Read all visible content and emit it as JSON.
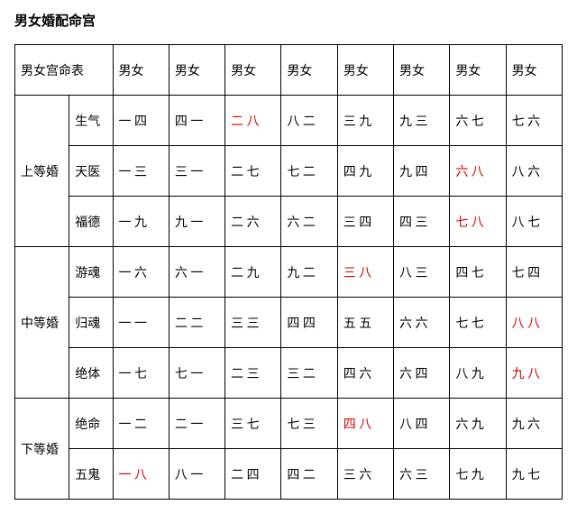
{
  "title": "男女婚配命宫",
  "header": {
    "first": "男女宫命表",
    "cols": [
      "男女",
      "男女",
      "男女",
      "男女",
      "男女",
      "男女",
      "男女",
      "男女"
    ]
  },
  "groups": [
    {
      "label": "上等婚",
      "rows": [
        {
          "sub": "生气",
          "cells": [
            {
              "t": "一 四"
            },
            {
              "t": "四 一"
            },
            {
              "t": "二 八",
              "red": true
            },
            {
              "t": "八 二"
            },
            {
              "t": "三 九"
            },
            {
              "t": "九 三"
            },
            {
              "t": "六 七"
            },
            {
              "t": "七 六"
            }
          ]
        },
        {
          "sub": "天医",
          "cells": [
            {
              "t": "一 三"
            },
            {
              "t": "三 一"
            },
            {
              "t": "二 七"
            },
            {
              "t": "七 二"
            },
            {
              "t": "四 九"
            },
            {
              "t": "九 四"
            },
            {
              "t": "六 八",
              "red": true
            },
            {
              "t": "八 六"
            }
          ]
        },
        {
          "sub": "福德",
          "cells": [
            {
              "t": "一 九"
            },
            {
              "t": "九 一"
            },
            {
              "t": "二 六"
            },
            {
              "t": "六 二"
            },
            {
              "t": "三 四"
            },
            {
              "t": "四 三"
            },
            {
              "t": "七 八",
              "red": true
            },
            {
              "t": "八 七"
            }
          ]
        }
      ]
    },
    {
      "label": "中等婚",
      "rows": [
        {
          "sub": "游魂",
          "cells": [
            {
              "t": "一 六"
            },
            {
              "t": "六 一"
            },
            {
              "t": "二 九"
            },
            {
              "t": "九 二"
            },
            {
              "t": "三 八",
              "red": true
            },
            {
              "t": "八 三"
            },
            {
              "t": "四 七"
            },
            {
              "t": "七 四"
            }
          ]
        },
        {
          "sub": "归魂",
          "cells": [
            {
              "t": "一 一"
            },
            {
              "t": "二 二"
            },
            {
              "t": "三 三"
            },
            {
              "t": "四 四"
            },
            {
              "t": "五 五"
            },
            {
              "t": "六 六"
            },
            {
              "t": "七 七"
            },
            {
              "t": "八 八",
              "red": true
            }
          ]
        },
        {
          "sub": "绝体",
          "cells": [
            {
              "t": "一 七"
            },
            {
              "t": "七 一"
            },
            {
              "t": "二 三"
            },
            {
              "t": "三 二"
            },
            {
              "t": "四 六"
            },
            {
              "t": "六 四"
            },
            {
              "t": "八 九"
            },
            {
              "t": "九 八",
              "red": true
            }
          ]
        }
      ]
    },
    {
      "label": "下等婚",
      "rows": [
        {
          "sub": "绝命",
          "cells": [
            {
              "t": "一 二"
            },
            {
              "t": "二 一"
            },
            {
              "t": "三 七"
            },
            {
              "t": "七 三"
            },
            {
              "t": "四 八",
              "red": true
            },
            {
              "t": "八 四"
            },
            {
              "t": "六 九"
            },
            {
              "t": "九 六"
            }
          ]
        },
        {
          "sub": "五鬼",
          "cells": [
            {
              "t": "一 八",
              "red": true
            },
            {
              "t": "八 一"
            },
            {
              "t": "二 四"
            },
            {
              "t": "四 二"
            },
            {
              "t": "三 六"
            },
            {
              "t": "六 三"
            },
            {
              "t": "七 九"
            },
            {
              "t": "九 七"
            }
          ]
        }
      ]
    }
  ]
}
